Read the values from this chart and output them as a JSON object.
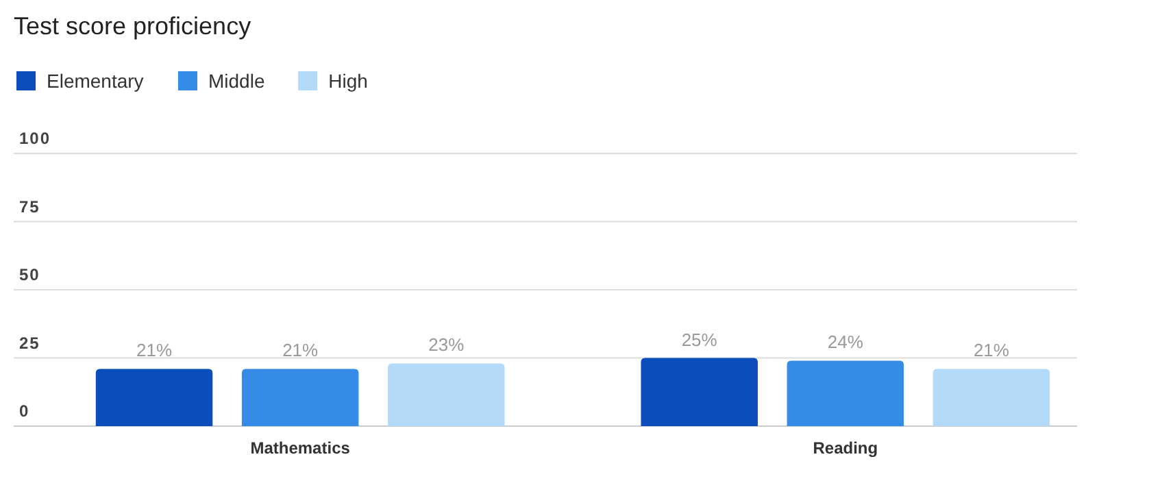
{
  "chart_data": {
    "type": "bar",
    "title": "Test score proficiency",
    "categories": [
      "Mathematics",
      "Reading"
    ],
    "series": [
      {
        "name": "Elementary",
        "color": "#0a4dbb",
        "values": [
          21,
          25
        ],
        "value_labels": [
          "21%",
          "25%"
        ]
      },
      {
        "name": "Middle",
        "color": "#368be6",
        "values": [
          21,
          24
        ],
        "value_labels": [
          "21%",
          "24%"
        ]
      },
      {
        "name": "High",
        "color": "#b3dbf9",
        "values": [
          23,
          21
        ],
        "value_labels": [
          "23%",
          "21%"
        ]
      }
    ],
    "ylim": [
      0,
      100
    ],
    "yticks": [
      0,
      25,
      50,
      75,
      100
    ],
    "grid": "y",
    "legend": "top left"
  }
}
